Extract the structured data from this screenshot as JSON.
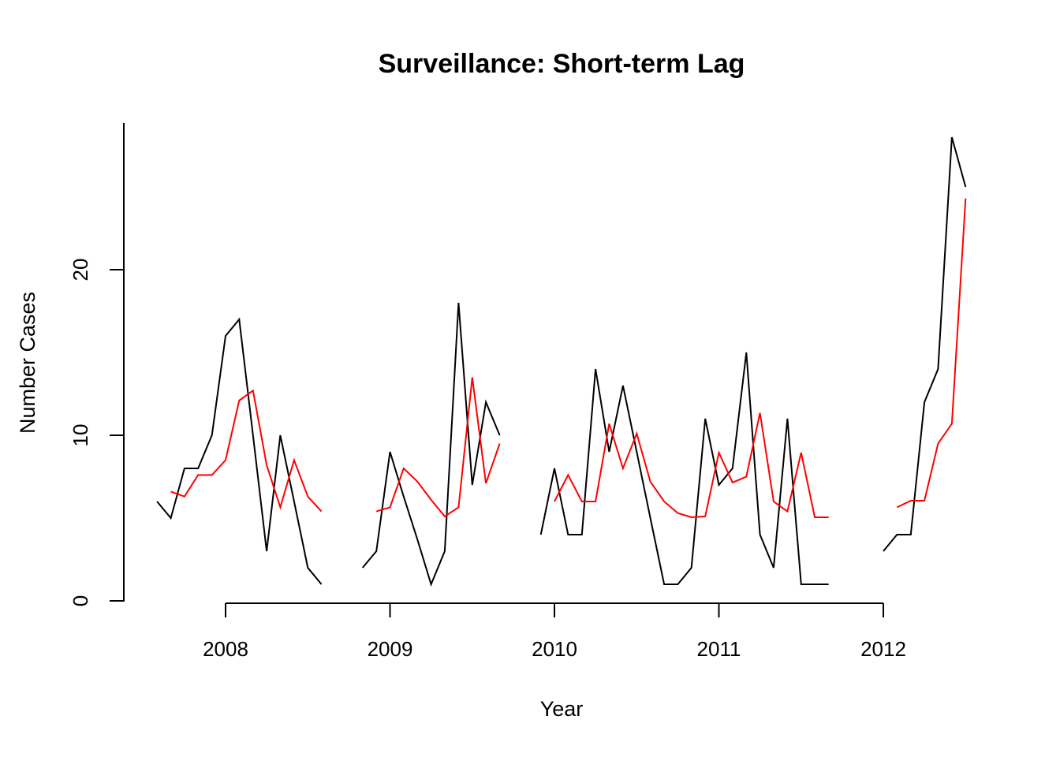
{
  "page": {
    "background": "#ffffff"
  },
  "chart_data": {
    "type": "line",
    "title": "Surveillance: Short-term Lag",
    "xlabel": "Year",
    "ylabel": "Number Cases",
    "x_ticks": [
      2008,
      2009,
      2010,
      2011,
      2012
    ],
    "y_ticks": [
      0,
      10,
      20
    ],
    "xlim": [
      2007.42,
      2012.72
    ],
    "ylim": [
      0,
      28.9
    ],
    "grid": false,
    "legend": "none",
    "colors": {
      "observed": "#000000",
      "fitted": "#ff0000"
    },
    "series": [
      {
        "name": "observed",
        "color": "#000000",
        "segments": [
          [
            [
              2007.583,
              6
            ],
            [
              2007.667,
              5
            ],
            [
              2007.75,
              8
            ],
            [
              2007.833,
              8
            ],
            [
              2007.917,
              10
            ],
            [
              2008.0,
              16
            ],
            [
              2008.083,
              17
            ],
            [
              2008.167,
              10
            ],
            [
              2008.25,
              3
            ],
            [
              2008.333,
              10
            ],
            [
              2008.417,
              6
            ],
            [
              2008.5,
              2
            ],
            [
              2008.583,
              1
            ]
          ],
          [
            [
              2008.833,
              2
            ],
            [
              2008.917,
              3
            ],
            [
              2009.0,
              9
            ],
            [
              2009.083,
              6.3
            ],
            [
              2009.167,
              3.7
            ],
            [
              2009.25,
              1
            ],
            [
              2009.333,
              3
            ],
            [
              2009.417,
              18
            ],
            [
              2009.5,
              7
            ],
            [
              2009.583,
              12
            ],
            [
              2009.667,
              10
            ]
          ],
          [
            [
              2009.917,
              4
            ],
            [
              2010.0,
              8
            ],
            [
              2010.083,
              4
            ],
            [
              2010.167,
              4
            ],
            [
              2010.25,
              14
            ],
            [
              2010.333,
              9
            ],
            [
              2010.417,
              13
            ],
            [
              2010.5,
              9
            ],
            [
              2010.583,
              5
            ],
            [
              2010.667,
              1
            ],
            [
              2010.75,
              1
            ],
            [
              2010.833,
              2
            ],
            [
              2010.917,
              11
            ],
            [
              2011.0,
              7
            ],
            [
              2011.083,
              8
            ],
            [
              2011.167,
              15
            ],
            [
              2011.25,
              4
            ],
            [
              2011.333,
              2
            ],
            [
              2011.417,
              11
            ],
            [
              2011.5,
              1
            ],
            [
              2011.583,
              1
            ],
            [
              2011.667,
              1
            ]
          ],
          [
            [
              2012.0,
              3
            ],
            [
              2012.083,
              4
            ],
            [
              2012.167,
              4
            ],
            [
              2012.25,
              12
            ],
            [
              2012.333,
              14
            ],
            [
              2012.417,
              28
            ],
            [
              2012.5,
              25
            ]
          ]
        ]
      },
      {
        "name": "fitted",
        "color": "#ff0000",
        "segments": [
          [
            [
              2007.667,
              6.6
            ],
            [
              2007.75,
              6.3
            ],
            [
              2007.833,
              7.6
            ],
            [
              2007.917,
              7.6
            ],
            [
              2008.0,
              8.5
            ],
            [
              2008.083,
              12.1
            ],
            [
              2008.167,
              12.7
            ],
            [
              2008.25,
              8.2
            ],
            [
              2008.333,
              5.65
            ],
            [
              2008.417,
              8.5
            ],
            [
              2008.5,
              6.3
            ],
            [
              2008.583,
              5.4
            ]
          ],
          [
            [
              2008.917,
              5.4
            ],
            [
              2009.0,
              5.65
            ],
            [
              2009.083,
              8.0
            ],
            [
              2009.167,
              7.2
            ],
            [
              2009.25,
              6.1
            ],
            [
              2009.333,
              5.1
            ],
            [
              2009.417,
              5.65
            ],
            [
              2009.5,
              13.5
            ],
            [
              2009.583,
              7.1
            ],
            [
              2009.667,
              9.5
            ]
          ],
          [
            [
              2010.0,
              6.0
            ],
            [
              2010.083,
              7.6
            ],
            [
              2010.167,
              6.0
            ],
            [
              2010.25,
              6.0
            ],
            [
              2010.333,
              10.7
            ],
            [
              2010.417,
              8.0
            ],
            [
              2010.5,
              10.1
            ],
            [
              2010.583,
              7.2
            ],
            [
              2010.667,
              6.0
            ],
            [
              2010.75,
              5.3
            ],
            [
              2010.833,
              5.05
            ],
            [
              2010.917,
              5.1
            ],
            [
              2011.0,
              8.95
            ],
            [
              2011.083,
              7.15
            ],
            [
              2011.167,
              7.5
            ],
            [
              2011.25,
              11.35
            ],
            [
              2011.333,
              6.0
            ],
            [
              2011.417,
              5.4
            ],
            [
              2011.5,
              8.95
            ],
            [
              2011.583,
              5.05
            ],
            [
              2011.667,
              5.05
            ]
          ],
          [
            [
              2012.083,
              5.65
            ],
            [
              2012.167,
              6.05
            ],
            [
              2012.25,
              6.05
            ],
            [
              2012.333,
              9.5
            ],
            [
              2012.417,
              10.7
            ],
            [
              2012.5,
              24.3
            ]
          ]
        ]
      }
    ]
  }
}
